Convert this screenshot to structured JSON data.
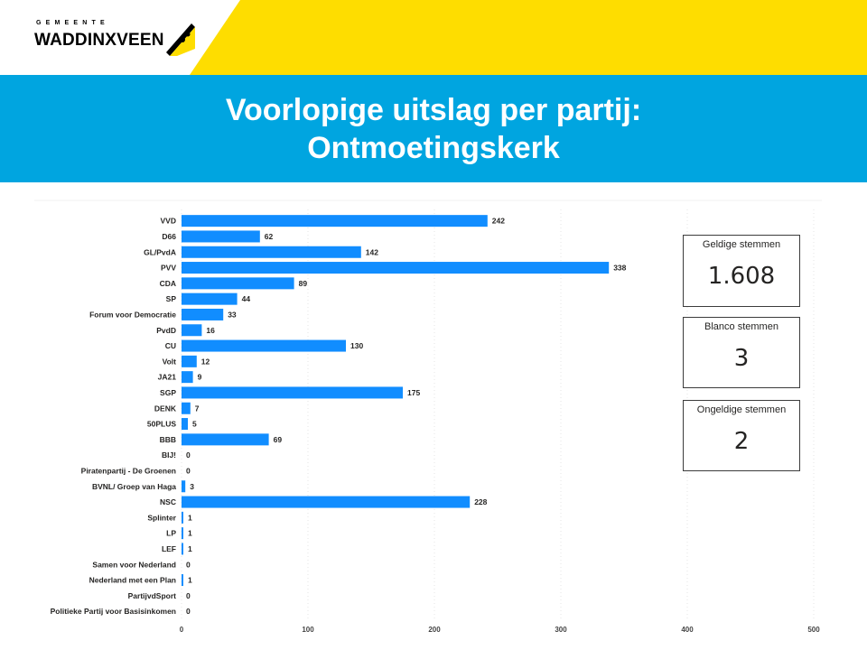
{
  "header": {
    "logo_sub": "GEMEENTE",
    "logo_name": "WADDINXVEEN",
    "title_line1": "Voorlopige uitslag per partij:",
    "title_line2": "Ontmoetingskerk"
  },
  "colors": {
    "yellow": "#fedd00",
    "blue": "#00a5e0",
    "bar": "#118dff"
  },
  "cards": [
    {
      "label": "Geldige stemmen",
      "value": "1.608"
    },
    {
      "label": "Blanco stemmen",
      "value": "3"
    },
    {
      "label": "Ongeldige stemmen",
      "value": "2"
    }
  ],
  "chart_data": {
    "type": "bar",
    "orientation": "horizontal",
    "categories": [
      "VVD",
      "D66",
      "GL/PvdA",
      "PVV",
      "CDA",
      "SP",
      "Forum voor Democratie",
      "PvdD",
      "CU",
      "Volt",
      "JA21",
      "SGP",
      "DENK",
      "50PLUS",
      "BBB",
      "BIJ!",
      "Piratenpartij - De Groenen",
      "BVNL/ Groep van Haga",
      "NSC",
      "Splinter",
      "LP",
      "LEF",
      "Samen voor Nederland",
      "Nederland met een Plan",
      "PartijvdSport",
      "Politieke Partij voor Basisinkomen"
    ],
    "values": [
      242,
      62,
      142,
      338,
      89,
      44,
      33,
      16,
      130,
      12,
      9,
      175,
      7,
      5,
      69,
      0,
      0,
      3,
      228,
      1,
      1,
      1,
      0,
      1,
      0,
      0
    ],
    "xticks": [
      0,
      100,
      200,
      300,
      400,
      500
    ],
    "xlim": [
      0,
      500
    ],
    "data_labels": true,
    "grid": true
  }
}
